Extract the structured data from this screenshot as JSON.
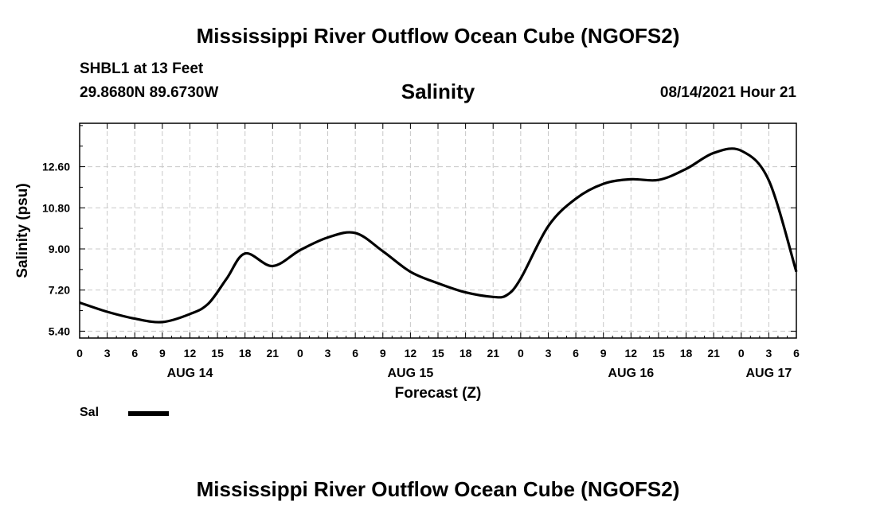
{
  "header": {
    "title": "Mississippi River Outflow Ocean Cube (NGOFS2)",
    "station": "SHBL1 at 13 Feet",
    "coords": "29.8680N  89.6730W",
    "subtitle": "Salinity",
    "datetime": "08/14/2021 Hour 21"
  },
  "footer": {
    "title": "Mississippi River Outflow Ocean Cube (NGOFS2)"
  },
  "legend": {
    "label": "Sal",
    "color": "#000000"
  },
  "chart_data": {
    "type": "line",
    "title": "Salinity",
    "xlabel": "Forecast (Z)",
    "ylabel": "Salinity (psu)",
    "xlim": [
      0,
      78
    ],
    "ylim": [
      5.1,
      14.5
    ],
    "grid": true,
    "x_ticks": [
      0,
      3,
      6,
      9,
      12,
      15,
      18,
      21,
      24,
      27,
      30,
      33,
      36,
      39,
      42,
      45,
      48,
      51,
      54,
      57,
      60,
      63,
      66,
      69,
      72,
      75,
      78
    ],
    "x_tick_labels": [
      "0",
      "3",
      "6",
      "9",
      "12",
      "15",
      "18",
      "21",
      "0",
      "3",
      "6",
      "9",
      "12",
      "15",
      "18",
      "21",
      "0",
      "3",
      "6",
      "9",
      "12",
      "15",
      "18",
      "21",
      "0",
      "3",
      "6"
    ],
    "y_ticks": [
      5.4,
      7.2,
      9.0,
      10.8,
      12.6
    ],
    "y_tick_labels": [
      "5.40",
      "7.20",
      "9.00",
      "10.80",
      "12.60"
    ],
    "date_labels": [
      {
        "x": 12,
        "label": "AUG 14"
      },
      {
        "x": 36,
        "label": "AUG 15"
      },
      {
        "x": 60,
        "label": "AUG 16"
      },
      {
        "x": 75,
        "label": "AUG 17"
      }
    ],
    "series": [
      {
        "name": "Sal",
        "color": "#000000",
        "x": [
          0,
          3,
          6,
          9,
          12,
          14,
          16,
          18,
          21,
          24,
          27,
          30,
          33,
          36,
          39,
          42,
          45,
          46.5,
          48,
          51,
          54,
          57,
          60,
          63,
          66,
          69,
          72,
          75,
          78
        ],
        "values": [
          6.65,
          6.25,
          5.95,
          5.8,
          6.15,
          6.6,
          7.7,
          8.8,
          8.25,
          8.95,
          9.5,
          9.7,
          8.9,
          8.0,
          7.5,
          7.1,
          6.9,
          6.98,
          7.7,
          10.0,
          11.2,
          11.85,
          12.05,
          12.02,
          12.5,
          13.2,
          13.3,
          12.0,
          8.0
        ]
      }
    ]
  }
}
